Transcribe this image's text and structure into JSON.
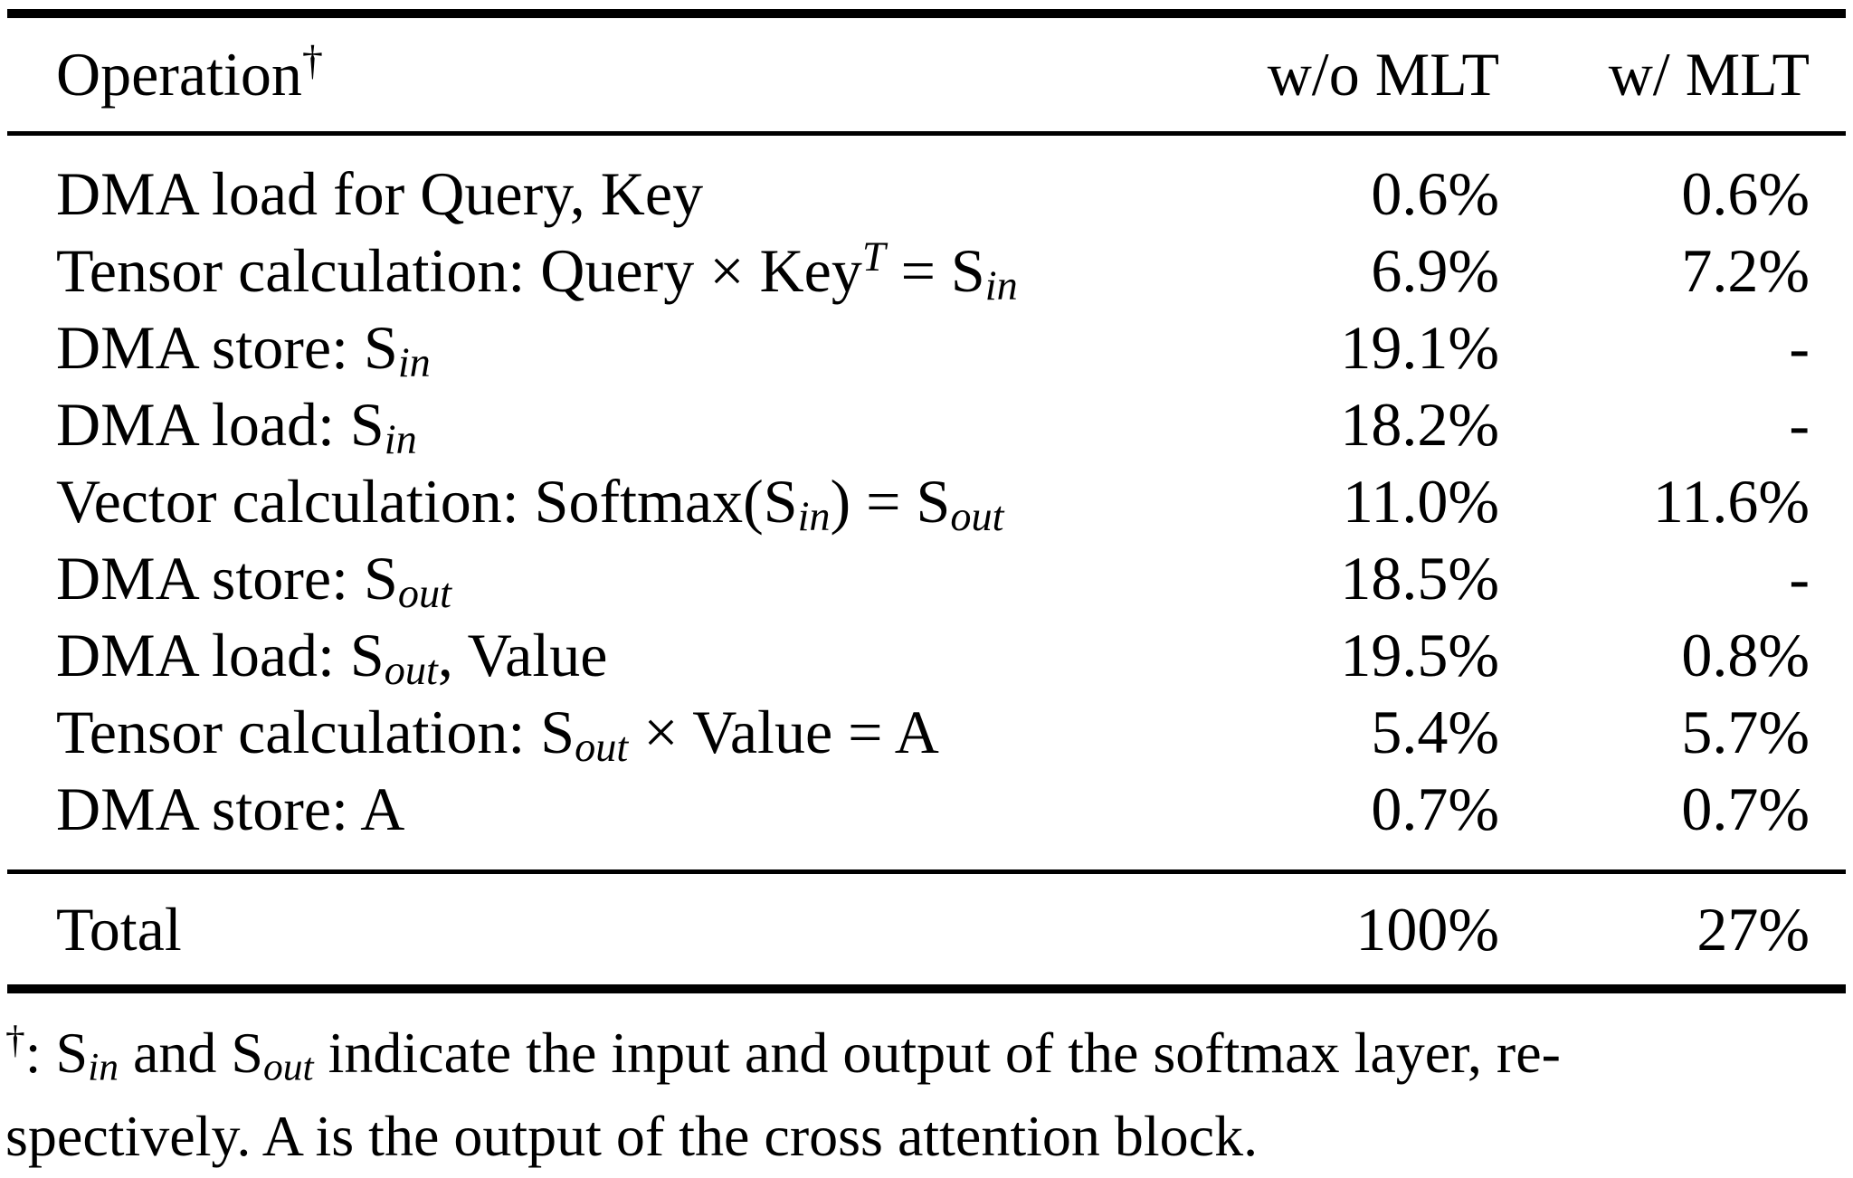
{
  "page": {
    "background_color": "#ffffff",
    "text_color": "#000000"
  },
  "table": {
    "columns": [
      {
        "key": "operation",
        "label_rich": [
          {
            "t": "Operation"
          },
          {
            "sup": "†"
          }
        ]
      },
      {
        "key": "wo_mlt",
        "label": "w/o MLT"
      },
      {
        "key": "w_mlt",
        "label": "w/ MLT"
      }
    ],
    "rows": [
      {
        "op": [
          {
            "t": "DMA load for Query, Key"
          }
        ],
        "wo_mlt": "0.6%",
        "w_mlt": "0.6%"
      },
      {
        "op": [
          {
            "t": "Tensor calculation: Query × Key"
          },
          {
            "sup": "T",
            "i": true
          },
          {
            "t": " = S"
          },
          {
            "sub": "in"
          }
        ],
        "wo_mlt": "6.9%",
        "w_mlt": "7.2%"
      },
      {
        "op": [
          {
            "t": "DMA store: S"
          },
          {
            "sub": "in"
          }
        ],
        "wo_mlt": "19.1%",
        "w_mlt": "-"
      },
      {
        "op": [
          {
            "t": "DMA load: S"
          },
          {
            "sub": "in"
          }
        ],
        "wo_mlt": "18.2%",
        "w_mlt": "-"
      },
      {
        "op": [
          {
            "t": "Vector calculation: Softmax(S"
          },
          {
            "sub": "in"
          },
          {
            "t": ") = S"
          },
          {
            "sub": "out"
          }
        ],
        "wo_mlt": "11.0%",
        "w_mlt": "11.6%"
      },
      {
        "op": [
          {
            "t": "DMA store: S"
          },
          {
            "sub": "out"
          }
        ],
        "wo_mlt": "18.5%",
        "w_mlt": "-"
      },
      {
        "op": [
          {
            "t": "DMA load: S"
          },
          {
            "sub": "out"
          },
          {
            "t": ", Value"
          }
        ],
        "wo_mlt": "19.5%",
        "w_mlt": "0.8%"
      },
      {
        "op": [
          {
            "t": "Tensor calculation: S"
          },
          {
            "sub": "out"
          },
          {
            "t": " × Value = A"
          }
        ],
        "wo_mlt": "5.4%",
        "w_mlt": "5.7%"
      },
      {
        "op": [
          {
            "t": "DMA store: A"
          }
        ],
        "wo_mlt": "0.7%",
        "w_mlt": "0.7%"
      }
    ],
    "total": {
      "label": "Total",
      "wo_mlt": "100%",
      "w_mlt": "27%"
    }
  },
  "footnote": {
    "lines": [
      [
        {
          "sup": "†"
        },
        {
          "t": ": S"
        },
        {
          "sub": "in"
        },
        {
          "t": " and S"
        },
        {
          "sub": "out"
        },
        {
          "t": " indicate the input and output of the softmax layer, re-"
        }
      ],
      [
        {
          "t": "spectively. A is the output of the cross attention block."
        }
      ]
    ]
  }
}
